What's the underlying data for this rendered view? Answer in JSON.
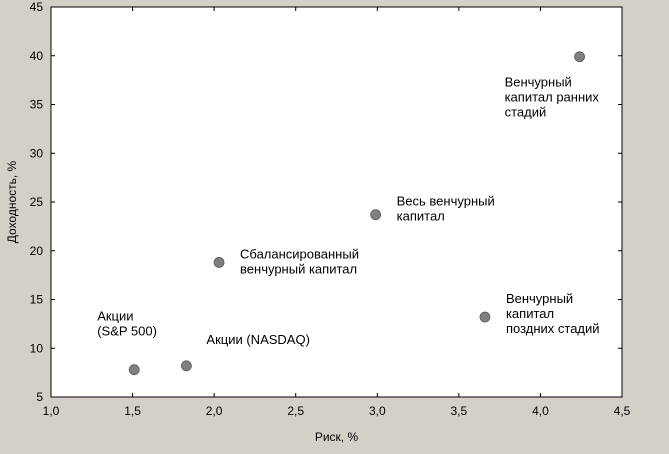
{
  "colors": {
    "background": "#d4d0c8",
    "plot_area": "#ffffff",
    "point": "#808080",
    "point_edge": "#5a5a5a",
    "text": "#000000"
  },
  "chart_data": {
    "type": "scatter",
    "title": "",
    "xlabel": "Риск, %",
    "ylabel": "Доходность, %",
    "xlim": [
      1.0,
      4.5
    ],
    "ylim": [
      5,
      45
    ],
    "xticks": [
      1.0,
      1.5,
      2.0,
      2.5,
      3.0,
      3.5,
      4.0,
      4.5
    ],
    "xtick_labels": [
      "1,0",
      "1,5",
      "2,0",
      "2,5",
      "3,0",
      "3,5",
      "4,0",
      "4,5"
    ],
    "yticks": [
      5,
      10,
      15,
      20,
      25,
      30,
      35,
      40,
      45
    ],
    "ytick_labels": [
      "5",
      "10",
      "15",
      "20",
      "25",
      "30",
      "35",
      "40",
      "45"
    ],
    "grid": false,
    "legend": "none",
    "points": [
      {
        "x": 1.51,
        "y": 7.8,
        "label": [
          "Акции",
          "(S&P 500)"
        ]
      },
      {
        "x": 1.83,
        "y": 8.2,
        "label": [
          "Акции (NASDAQ)"
        ]
      },
      {
        "x": 2.03,
        "y": 18.8,
        "label": [
          "Сбалансированный",
          "венчурный капитал"
        ]
      },
      {
        "x": 2.99,
        "y": 23.7,
        "label": [
          "Весь венчурный",
          "капитал"
        ]
      },
      {
        "x": 3.66,
        "y": 13.2,
        "label": [
          "Венчурный",
          "капитал",
          "поздних стадий"
        ]
      },
      {
        "x": 4.24,
        "y": 39.9,
        "label": [
          "Венчурный",
          "капитал ранних",
          "стадий"
        ]
      }
    ]
  }
}
